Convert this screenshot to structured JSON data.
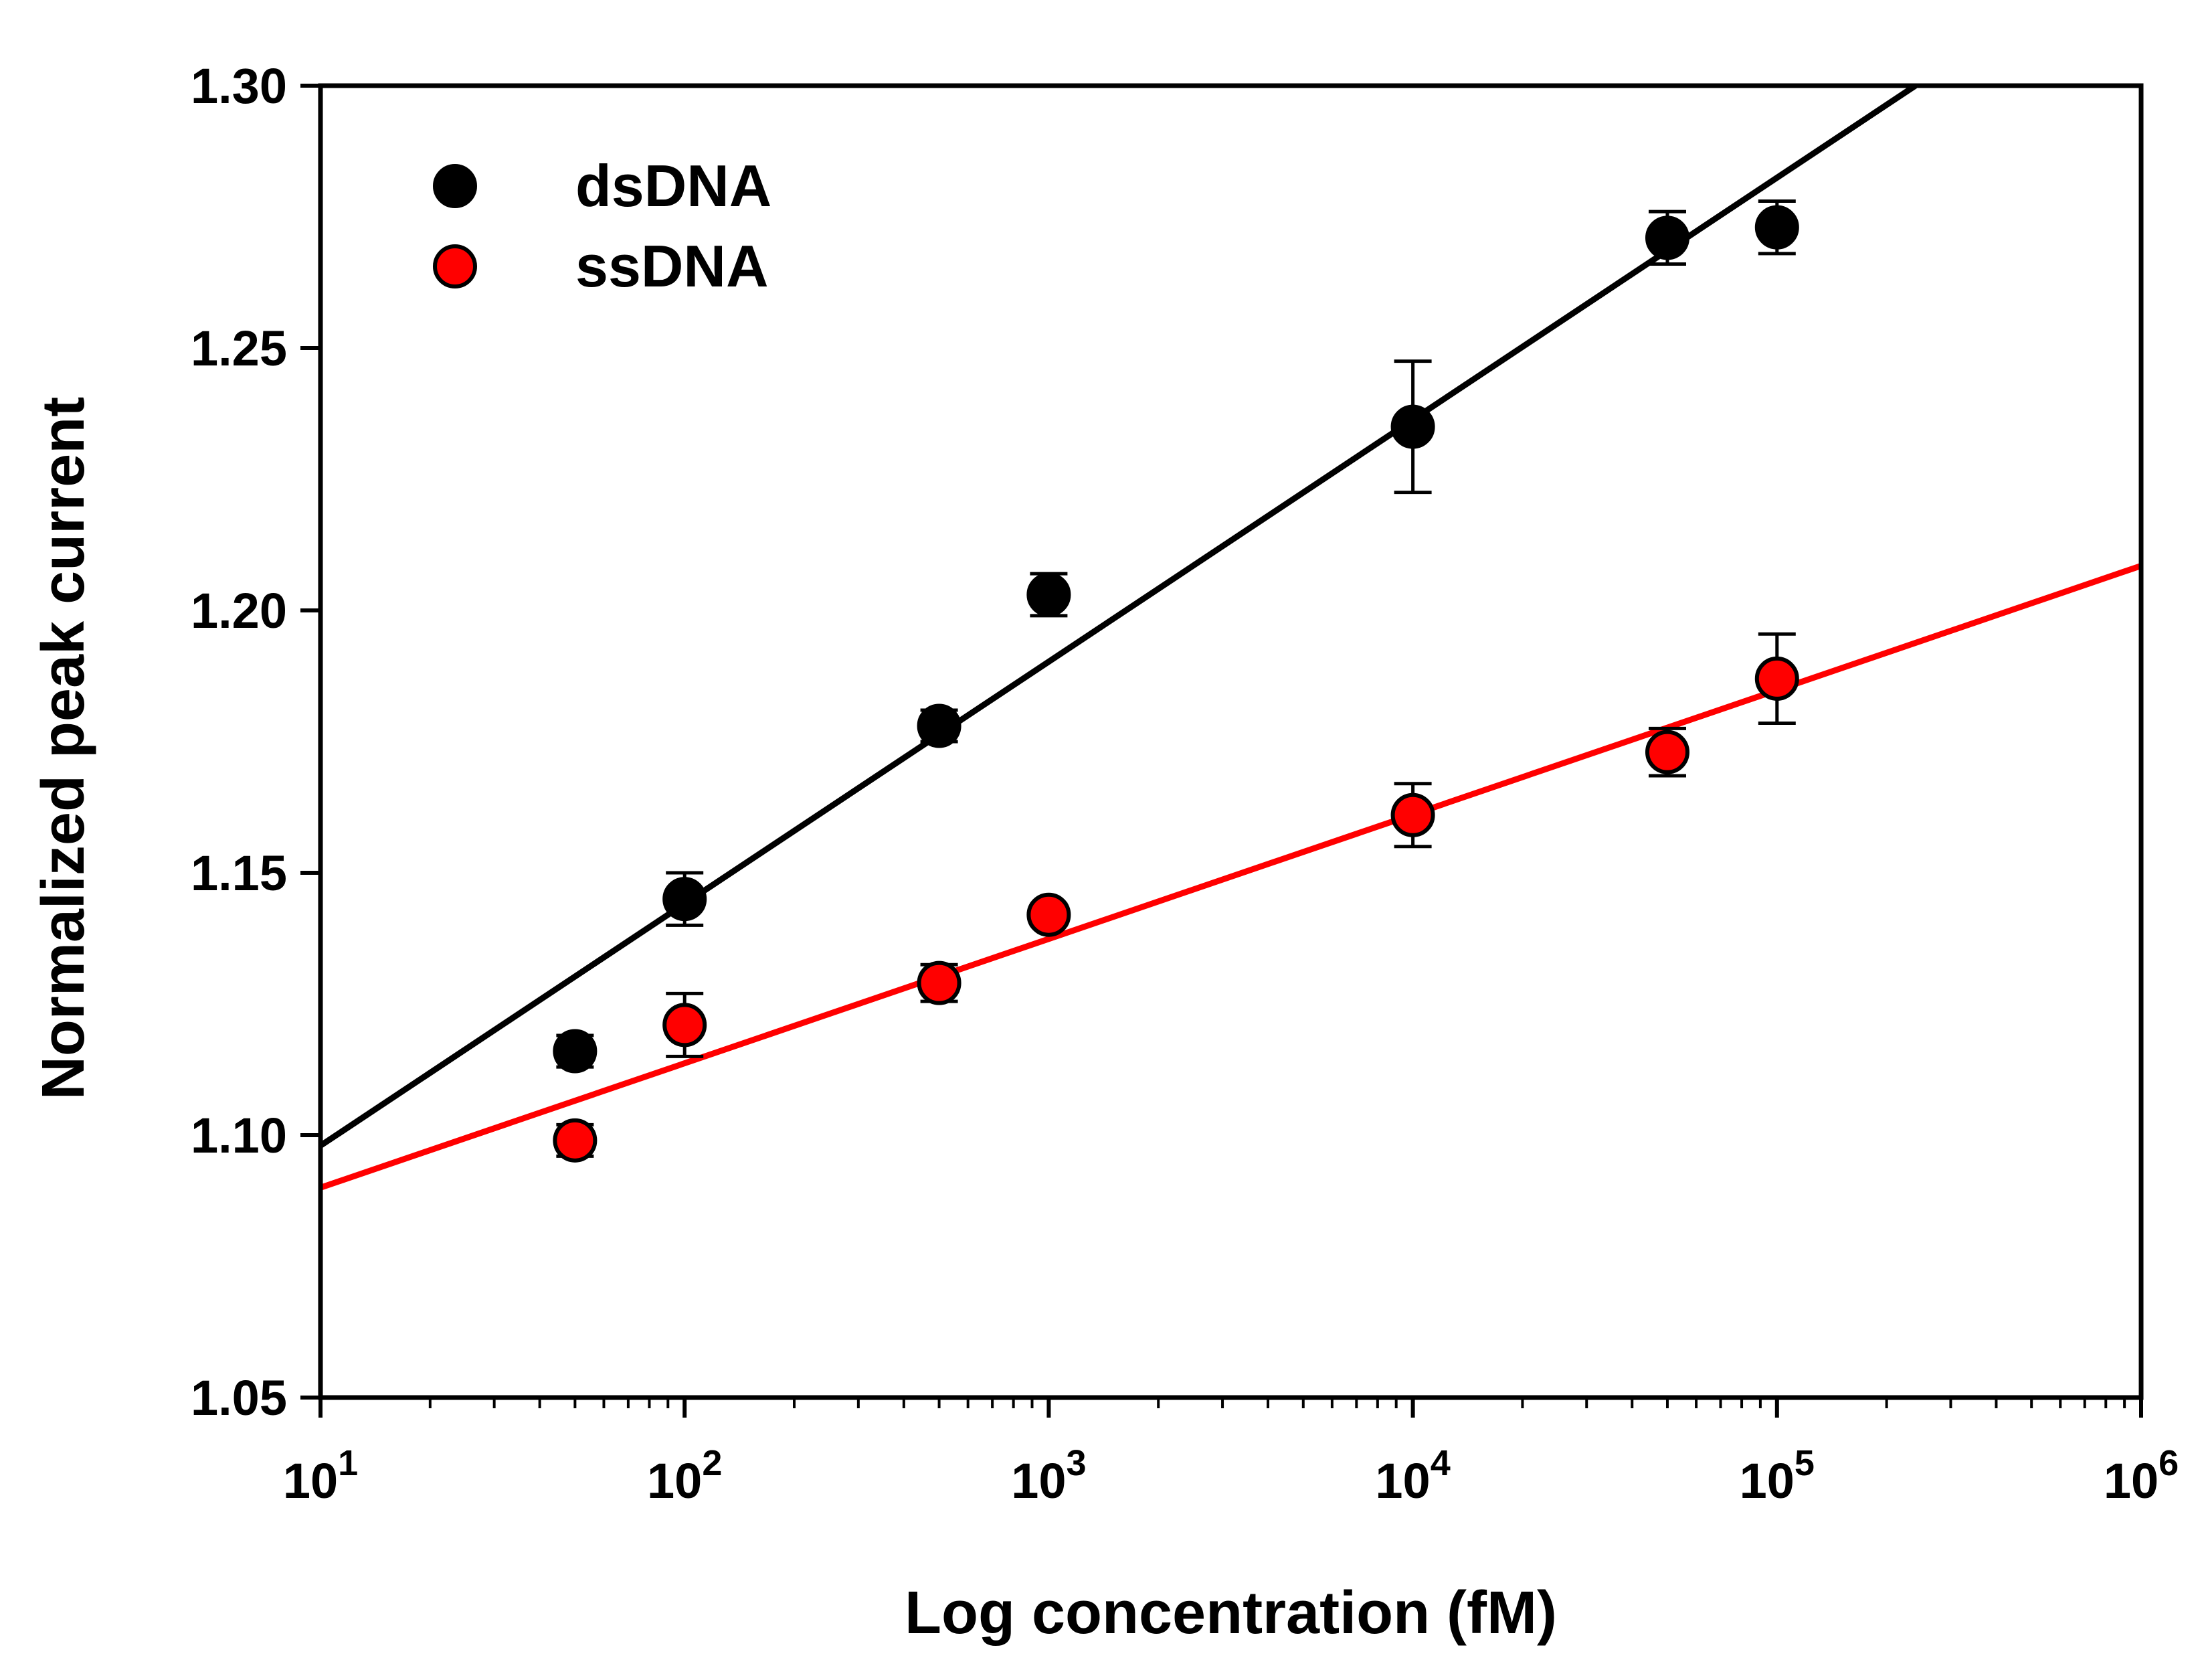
{
  "chart_data": {
    "type": "scatter",
    "title": "",
    "xlabel": "Log concentration (fM)",
    "ylabel": "Normalized peak current",
    "x_scale": "log10",
    "xlim": [
      10,
      1000000
    ],
    "ylim": [
      1.05,
      1.3
    ],
    "x_ticks": [
      {
        "base": "10",
        "exp": "1"
      },
      {
        "base": "10",
        "exp": "2"
      },
      {
        "base": "10",
        "exp": "3"
      },
      {
        "base": "10",
        "exp": "4"
      },
      {
        "base": "10",
        "exp": "5"
      },
      {
        "base": "10",
        "exp": "6"
      }
    ],
    "y_ticks": [
      "1.05",
      "1.10",
      "1.15",
      "1.20",
      "1.25",
      "1.30"
    ],
    "grid": false,
    "legend": "top-left",
    "series": [
      {
        "name": "dsDNA",
        "color": "#000000",
        "marker_fill": "#000000",
        "x": [
          50,
          100,
          500,
          1000,
          10000,
          50000,
          100000
        ],
        "y": [
          1.116,
          1.145,
          1.178,
          1.203,
          1.235,
          1.271,
          1.273
        ],
        "err": [
          0.003,
          0.005,
          0.003,
          0.004,
          0.0125,
          0.005,
          0.005
        ],
        "fit": {
          "x": [
            10,
            240000
          ],
          "y": [
            1.098,
            1.3
          ]
        }
      },
      {
        "name": "ssDNA",
        "color": "#ff0000",
        "marker_fill": "#ff0000",
        "x": [
          50,
          100,
          500,
          1000,
          10000,
          50000,
          100000
        ],
        "y": [
          1.099,
          1.121,
          1.129,
          1.142,
          1.161,
          1.173,
          1.187
        ],
        "err": [
          0.003,
          0.006,
          0.0035,
          0.002,
          0.006,
          0.0045,
          0.0085
        ],
        "fit": {
          "x": [
            10,
            1000000
          ],
          "y": [
            1.09,
            1.2085
          ]
        }
      }
    ]
  }
}
